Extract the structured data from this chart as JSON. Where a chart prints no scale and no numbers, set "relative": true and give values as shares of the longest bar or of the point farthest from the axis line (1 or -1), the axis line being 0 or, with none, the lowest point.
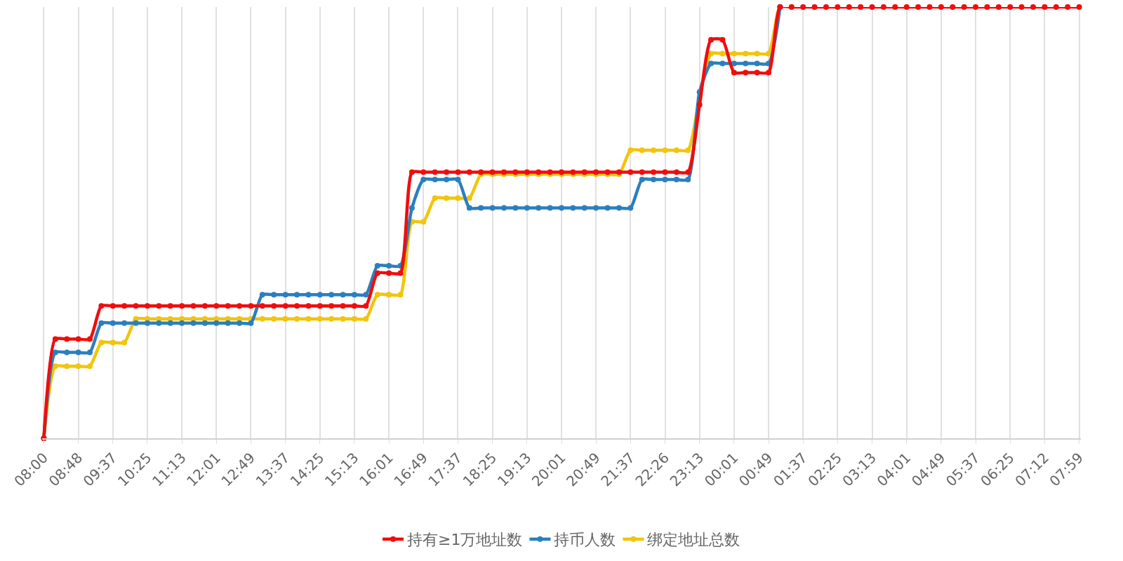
{
  "chart_data": {
    "type": "line",
    "relative": true,
    "grid": "x",
    "legend": "bottom",
    "marker": "circle",
    "line_style": "solid",
    "categories": [
      "08:00",
      null,
      null,
      "08:48",
      null,
      null,
      "09:37",
      null,
      null,
      "10:25",
      null,
      null,
      "11:13",
      null,
      null,
      "12:01",
      null,
      null,
      "12:49",
      null,
      null,
      "13:37",
      null,
      null,
      "14:25",
      null,
      null,
      "15:13",
      null,
      null,
      "16:01",
      null,
      null,
      "16:49",
      null,
      null,
      "17:37",
      null,
      null,
      "18:25",
      null,
      null,
      "19:13",
      null,
      null,
      "20:01",
      null,
      null,
      "20:49",
      null,
      null,
      "21:37",
      null,
      null,
      "22:26",
      null,
      null,
      "23:13",
      null,
      null,
      "00:01",
      null,
      null,
      "00:49",
      null,
      null,
      "01:37",
      null,
      null,
      "02:25",
      null,
      null,
      "03:13",
      null,
      null,
      "04:01",
      null,
      null,
      "04:49",
      null,
      null,
      "05:37",
      null,
      null,
      "06:25",
      null,
      null,
      "07:12",
      null,
      null,
      "07:59"
    ],
    "series": [
      {
        "name": "持有≥1万地址数",
        "color": "#f20c0c",
        "values": [
          0,
          0.23,
          0.23,
          0.23,
          0.23,
          0.307,
          0.307,
          0.307,
          0.307,
          0.307,
          0.307,
          0.307,
          0.307,
          0.307,
          0.307,
          0.307,
          0.307,
          0.307,
          0.307,
          0.307,
          0.307,
          0.307,
          0.307,
          0.307,
          0.307,
          0.307,
          0.307,
          0.307,
          0.307,
          0.383,
          0.383,
          0.383,
          0.617,
          0.617,
          0.617,
          0.617,
          0.617,
          0.617,
          0.617,
          0.617,
          0.617,
          0.617,
          0.617,
          0.617,
          0.617,
          0.617,
          0.617,
          0.617,
          0.617,
          0.617,
          0.617,
          0.617,
          0.617,
          0.617,
          0.617,
          0.617,
          0.617,
          0.773,
          0.924,
          0.924,
          0.848,
          0.848,
          0.848,
          0.848,
          1,
          1,
          1,
          1,
          1,
          1,
          1,
          1,
          1,
          1,
          1,
          1,
          1,
          1,
          1,
          1,
          1,
          1,
          1,
          1,
          1,
          1,
          1,
          1,
          1,
          1,
          1
        ]
      },
      {
        "name": "持币人数",
        "color": "#2b7fbe",
        "values": [
          0,
          0.199,
          0.199,
          0.199,
          0.199,
          0.267,
          0.267,
          0.267,
          0.267,
          0.267,
          0.267,
          0.267,
          0.267,
          0.267,
          0.267,
          0.267,
          0.267,
          0.267,
          0.267,
          0.333,
          0.333,
          0.333,
          0.333,
          0.333,
          0.333,
          0.333,
          0.333,
          0.333,
          0.333,
          0.4,
          0.4,
          0.4,
          0.534,
          0.6,
          0.6,
          0.6,
          0.6,
          0.534,
          0.534,
          0.534,
          0.534,
          0.534,
          0.534,
          0.534,
          0.534,
          0.534,
          0.534,
          0.534,
          0.534,
          0.534,
          0.534,
          0.534,
          0.6,
          0.6,
          0.6,
          0.6,
          0.6,
          0.803,
          0.869,
          0.869,
          0.869,
          0.869,
          0.869,
          0.869,
          1,
          null,
          null,
          null,
          null,
          null,
          null,
          null,
          null,
          null,
          null,
          null,
          null,
          null,
          null,
          null,
          null,
          null,
          null,
          null,
          null,
          null,
          null,
          null,
          null,
          null,
          null
        ]
      },
      {
        "name": "绑定地址总数",
        "color": "#f2c40c",
        "values": [
          0,
          0.167,
          0.167,
          0.167,
          0.167,
          0.222,
          0.222,
          0.222,
          0.277,
          0.277,
          0.277,
          0.277,
          0.277,
          0.277,
          0.277,
          0.277,
          0.277,
          0.277,
          0.277,
          0.277,
          0.277,
          0.277,
          0.277,
          0.277,
          0.277,
          0.277,
          0.277,
          0.277,
          0.277,
          0.333,
          0.333,
          0.333,
          0.502,
          0.502,
          0.557,
          0.557,
          0.557,
          0.557,
          0.612,
          0.612,
          0.612,
          0.612,
          0.612,
          0.612,
          0.612,
          0.612,
          0.612,
          0.612,
          0.612,
          0.612,
          0.612,
          0.668,
          0.668,
          0.668,
          0.668,
          0.668,
          0.668,
          0.79,
          0.892,
          0.892,
          0.892,
          0.892,
          0.892,
          0.892,
          1,
          1,
          null,
          null,
          null,
          null,
          null,
          null,
          null,
          null,
          null,
          null,
          null,
          null,
          null,
          null,
          null,
          null,
          null,
          null,
          null,
          null,
          null,
          null,
          null,
          null,
          null
        ]
      }
    ]
  }
}
